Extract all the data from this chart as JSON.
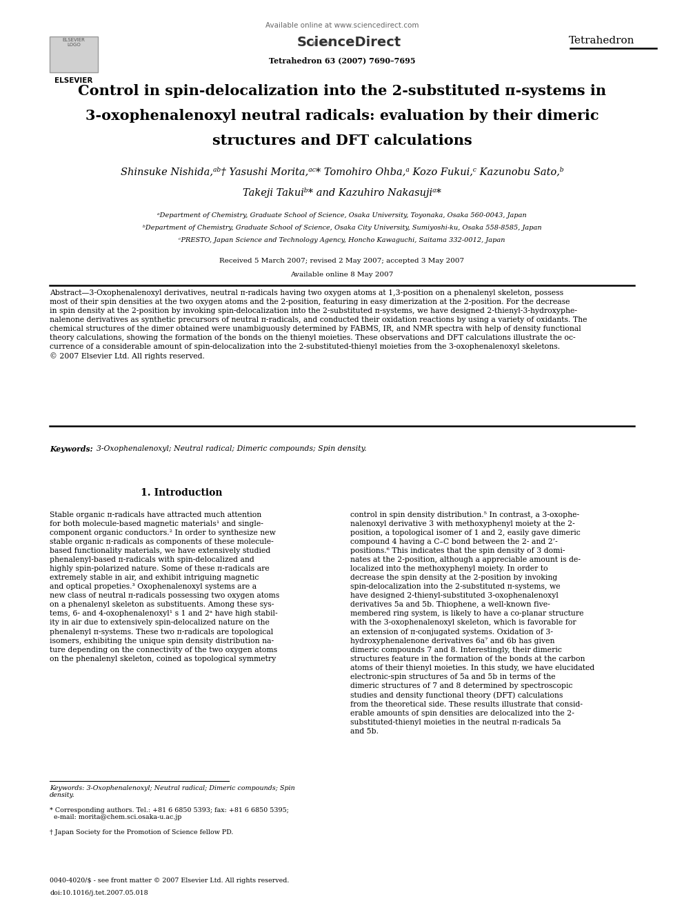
{
  "bg": "#ffffff",
  "page_width": 9.92,
  "page_height": 13.23,
  "dpi": 100,
  "header_available": "Available online at www.sciencedirect.com",
  "header_sd": "ScienceDirect",
  "header_journal_info": "Tetrahedron 63 (2007) 7690–7695",
  "header_journal": "Tetrahedron",
  "header_elsevier": "ELSEVIER",
  "title_line1": "Control in spin-delocalization into the 2-substituted π-systems in",
  "title_line2": "3-oxophenalenoxyl neutral radicals: evaluation by their dimeric",
  "title_line3": "structures and DFT calculations",
  "author_line1": "Shinsuke Nishida,ᵃᵇ† Yasushi Morita,ᵃᶜ* Tomohiro Ohba,ᵃ Kozo Fukui,ᶜ Kazunobu Sato,ᵇ",
  "author_line2": "Takeji Takuiᵇ* and Kazuhiro Nakasujiᵃ*",
  "affil_a": "ᵃDepartment of Chemistry, Graduate School of Science, Osaka University, Toyonaka, Osaka 560-0043, Japan",
  "affil_b": "ᵇDepartment of Chemistry, Graduate School of Science, Osaka City University, Sumiyoshi-ku, Osaka 558-8585, Japan",
  "affil_c": "ᶜPRESTO, Japan Science and Technology Agency, Honcho Kawaguchi, Saitama 332-0012, Japan",
  "received": "Received 5 March 2007; revised 2 May 2007; accepted 3 May 2007",
  "available_online": "Available online 8 May 2007",
  "abstract_text": "Abstract—3-Oxophenalenoxyl derivatives, neutral π-radicals having two oxygen atoms at 1,3-position on a phenalenyl skeleton, possess\nmost of their spin densities at the two oxygen atoms and the 2-position, featuring in easy dimerization at the 2-position. For the decrease\nin spin density at the 2-position by invoking spin-delocalization into the 2-substituted π-systems, we have designed 2-thienyl-3-hydroxyphe-\nnalenone derivatives as synthetic precursors of neutral π-radicals, and conducted their oxidation reactions by using a variety of oxidants. The\nchemical structures of the dimer obtained were unambiguously determined by FABMS, IR, and NMR spectra with help of density functional\ntheory calculations, showing the formation of the bonds on the thienyl moieties. These observations and DFT calculations illustrate the oc-\ncurrence of a considerable amount of spin-delocalization into the 2-substituted-thienyl moieties from the 3-oxophenalenoxyl skeletons.\n© 2007 Elsevier Ltd. All rights reserved.",
  "keywords_label": "Keywords:",
  "keywords_text": "3-Oxophenalenoxyl; Neutral radical; Dimeric compounds; Spin density.",
  "section1_title": "1. Introduction",
  "intro_left": "Stable organic π-radicals have attracted much attention\nfor both molecule-based magnetic materials¹ and single-\ncomponent organic conductors.² In order to synthesize new\nstable organic π-radicals as components of these molecule-\nbased functionality materials, we have extensively studied\nphenalenyl-based π-radicals with spin-delocalized and\nhighly spin-polarized nature. Some of these π-radicals are\nextremely stable in air, and exhibit intriguing magnetic\nand optical propeties.³ Oxophenalenoxyl systems are a\nnew class of neutral π-radicals possessing two oxygen atoms\non a phenalenyl skeleton as substituents. Among these sys-\ntems, 6- and 4-oxophenalenoxyl¹ s 1 and 2ᵃ have high stabil-\nity in air due to extensively spin-delocalized nature on the\nphenalenyl π-systems. These two π-radicals are topological\nisomers, exhibiting the unique spin density distribution na-\nture depending on the connectivity of the two oxygen atoms\non the phenalenyl skeleton, coined as topological symmetry",
  "intro_right": "control in spin density distribution.⁵ In contrast, a 3-oxophe-\nnalenoxyl derivative 3 with methoxyphenyl moiety at the 2-\nposition, a topological isomer of 1 and 2, easily gave dimeric\ncompound 4 having a C–C bond between the 2- and 2’-\npositions.⁶ This indicates that the spin density of 3 domi-\nnates at the 2-position, although a appreciable amount is de-\nlocalized into the methoxyphenyl moiety. In order to\ndecrease the spin density at the 2-position by invoking\nspin-delocalization into the 2-substituted π-systems, we\nhave designed 2-thienyl-substituted 3-oxophenalenoxyl\nderivatives 5a and 5b. Thiophene, a well-known five-\nmembered ring system, is likely to have a co-planar structure\nwith the 3-oxophenalenoxyl skeleton, which is favorable for\nan extension of π-conjugated systems. Oxidation of 3-\nhydroxyphenalenone derivatives 6a⁷ and 6b has given\ndimeric compounds 7 and 8. Interestingly, their dimeric\nstructures feature in the formation of the bonds at the carbon\natoms of their thienyl moieties. In this study, we have elucidated\nelectronic-spin structures of 5a and 5b in terms of the\ndimeric structures of 7 and 8 determined by spectroscopic\nstudies and density functional theory (DFT) calculations\nfrom the theoretical side. These results illustrate that consid-\nerable amounts of spin densities are delocalized into the 2-\nsubstituted-thienyl moieties in the neutral π-radicals 5a\nand 5b.",
  "keywords_footer": "Keywords: 3-Oxophenalenoxyl; Neutral radical; Dimeric compounds; Spin\ndensity.",
  "corresponding": "* Corresponding authors. Tel.: +81 6 6850 5393; fax: +81 6 6850 5395;\n  e-mail: morita@chem.sci.osaka-u.ac.jp",
  "dagger_note": "† Japan Society for the Promotion of Science fellow PD.",
  "footer_line1": "0040-4020/$ - see front matter © 2007 Elsevier Ltd. All rights reserved.",
  "footer_line2": "doi:10.1016/j.tet.2007.05.018"
}
